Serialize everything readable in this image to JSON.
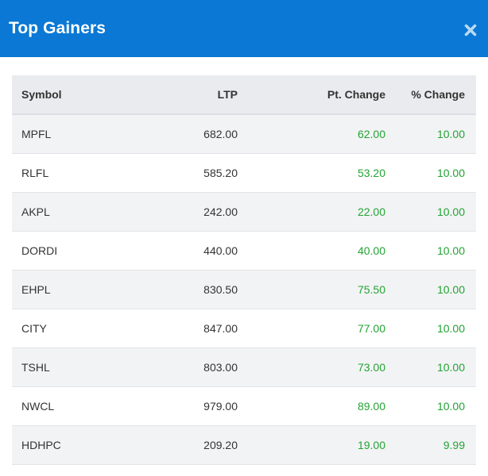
{
  "modal": {
    "title": "Top Gainers"
  },
  "colors": {
    "header_bg": "#0a78d4",
    "positive": "#23a335"
  },
  "icons": {
    "close": "close-icon"
  },
  "table": {
    "headers": {
      "symbol": "Symbol",
      "ltp": "LTP",
      "pt_change": "Pt. Change",
      "pct_change": "% Change"
    },
    "rows": [
      {
        "symbol": "MPFL",
        "ltp": "682.00",
        "pt_change": "62.00",
        "pct_change": "10.00"
      },
      {
        "symbol": "RLFL",
        "ltp": "585.20",
        "pt_change": "53.20",
        "pct_change": "10.00"
      },
      {
        "symbol": "AKPL",
        "ltp": "242.00",
        "pt_change": "22.00",
        "pct_change": "10.00"
      },
      {
        "symbol": "DORDI",
        "ltp": "440.00",
        "pt_change": "40.00",
        "pct_change": "10.00"
      },
      {
        "symbol": "EHPL",
        "ltp": "830.50",
        "pt_change": "75.50",
        "pct_change": "10.00"
      },
      {
        "symbol": "CITY",
        "ltp": "847.00",
        "pt_change": "77.00",
        "pct_change": "10.00"
      },
      {
        "symbol": "TSHL",
        "ltp": "803.00",
        "pt_change": "73.00",
        "pct_change": "10.00"
      },
      {
        "symbol": "NWCL",
        "ltp": "979.00",
        "pt_change": "89.00",
        "pct_change": "10.00"
      },
      {
        "symbol": "HDHPC",
        "ltp": "209.20",
        "pt_change": "19.00",
        "pct_change": "9.99"
      }
    ]
  }
}
